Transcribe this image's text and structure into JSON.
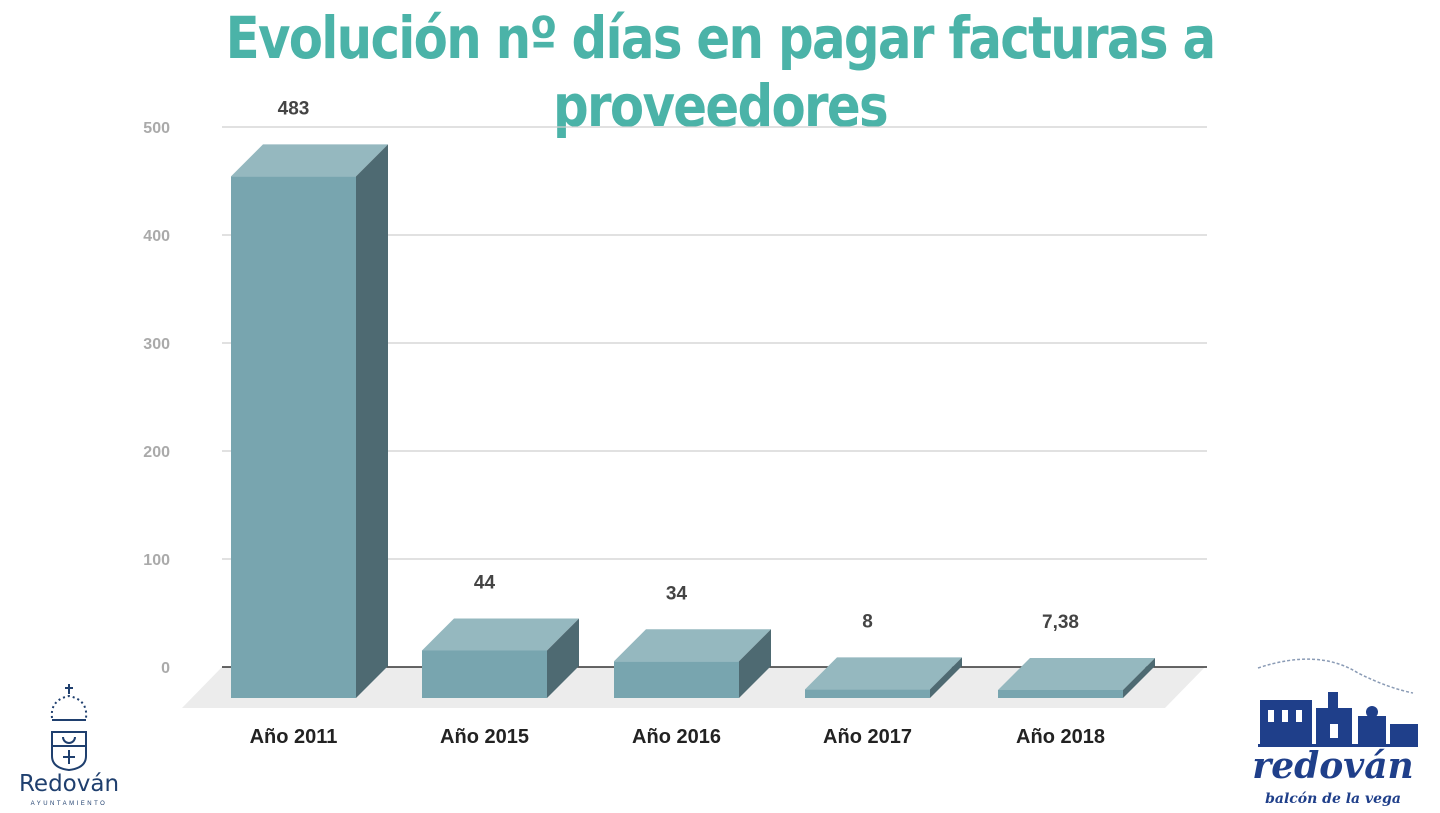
{
  "chart_data": {
    "type": "bar",
    "title": "Evolución nº días en pagar facturas a proveedores",
    "categories": [
      "Año 2011",
      "Año 2015",
      "Año 2016",
      "Año 2017",
      "Año 2018"
    ],
    "values": [
      483,
      44,
      34,
      8,
      7.38
    ],
    "data_labels": [
      "483",
      "44",
      "34",
      "8",
      "7,38"
    ],
    "xlabel": "",
    "ylabel": "",
    "ylim": [
      0,
      500
    ],
    "yticks": [
      0,
      100,
      200,
      300,
      400,
      500
    ],
    "grid": true,
    "style": "3d",
    "colors": {
      "front": "#78a5af",
      "top": "#95b8bf",
      "side": "#4e6a72",
      "floor": "#ececec",
      "title": "#4bb3a8"
    }
  },
  "logos": {
    "left": {
      "name": "Redován",
      "subtitle": "AYUNTAMIENTO"
    },
    "right": {
      "name": "redován",
      "subtitle": "balcón de la vega"
    }
  }
}
